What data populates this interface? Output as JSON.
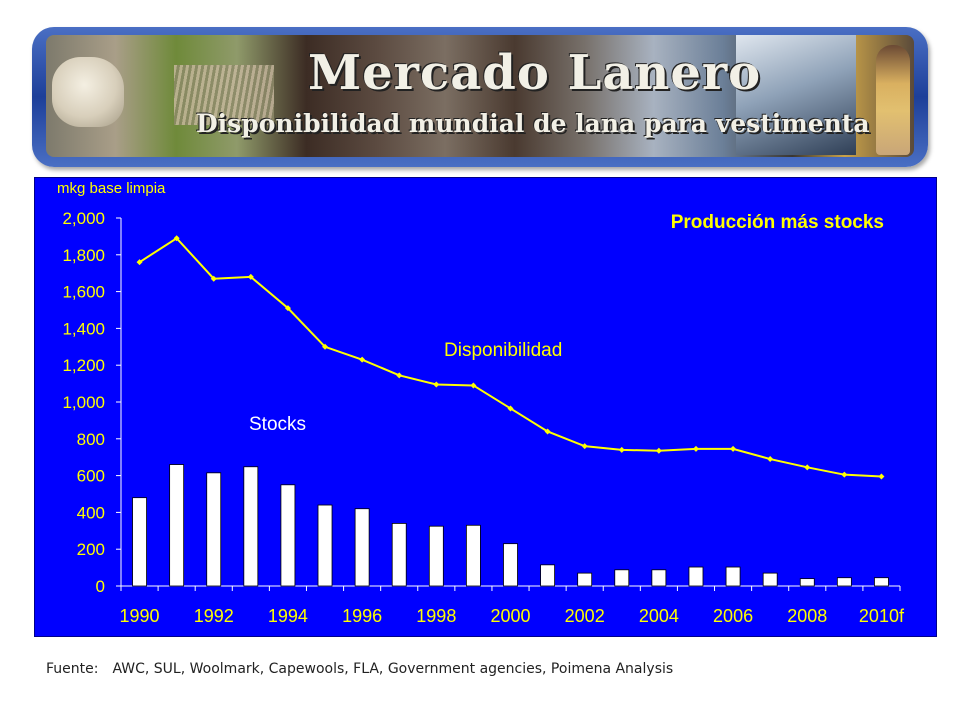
{
  "banner": {
    "title": "Mercado Lanero",
    "subtitle": "Disponibilidad mundial de lana para vestimenta"
  },
  "chart_data": {
    "type": "bar",
    "title": "Producción más stocks",
    "ylabel": "mkg base limpia",
    "xlabel": "",
    "ylim": [
      0,
      2000
    ],
    "yticks": [
      0,
      200,
      400,
      600,
      800,
      1000,
      1200,
      1400,
      1600,
      1800,
      2000
    ],
    "ytick_labels": [
      "0",
      "200",
      "400",
      "600",
      "800",
      "1,000",
      "1,200",
      "1,400",
      "1,600",
      "1,800",
      "2,000"
    ],
    "categories": [
      "1990",
      "1991",
      "1992",
      "1993",
      "1994",
      "1995",
      "1996",
      "1997",
      "1998",
      "1999",
      "2000",
      "2001",
      "2002",
      "2003",
      "2004",
      "2005",
      "2006",
      "2007",
      "2008",
      "2009",
      "2010f"
    ],
    "xtick_labels": [
      "1990",
      "1992",
      "1994",
      "1996",
      "1998",
      "2000",
      "2002",
      "2004",
      "2006",
      "2008",
      "2010f"
    ],
    "series": [
      {
        "name": "Stocks",
        "kind": "bar",
        "color": "#ffffff",
        "values": [
          480,
          660,
          615,
          648,
          550,
          440,
          420,
          340,
          325,
          330,
          230,
          115,
          70,
          88,
          88,
          103,
          103,
          70,
          40,
          45,
          45
        ]
      },
      {
        "name": "Disponibilidad",
        "kind": "line",
        "color": "#ffff00",
        "values": [
          1760,
          1890,
          1670,
          1680,
          1510,
          1300,
          1230,
          1145,
          1095,
          1090,
          965,
          840,
          760,
          740,
          735,
          745,
          745,
          690,
          645,
          605,
          595
        ]
      }
    ],
    "background": "#0000ff",
    "grid": false
  },
  "source": {
    "label": "Fuente:",
    "text": "AWC, SUL, Woolmark, Capewools, FLA, Government agencies, Poimena Analysis"
  }
}
